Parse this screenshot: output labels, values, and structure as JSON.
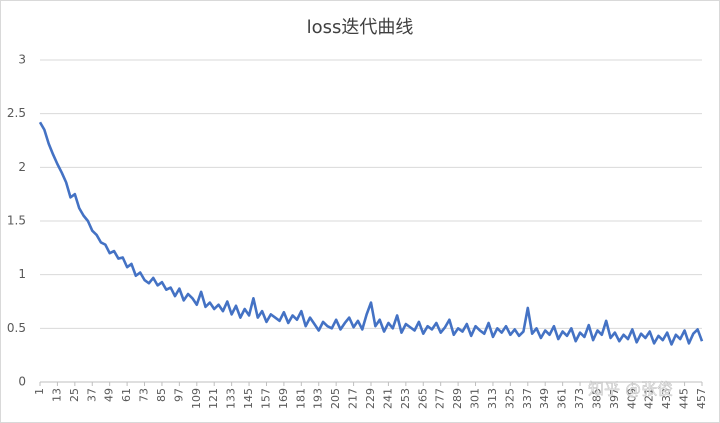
{
  "chart_data": {
    "type": "line",
    "title": "loss迭代曲线",
    "watermark": "知乎 @张俊",
    "x": [
      1,
      4,
      7,
      10,
      13,
      16,
      19,
      22,
      25,
      28,
      31,
      34,
      37,
      40,
      43,
      46,
      49,
      52,
      55,
      58,
      61,
      64,
      67,
      70,
      73,
      76,
      79,
      82,
      85,
      88,
      91,
      94,
      97,
      100,
      103,
      106,
      109,
      112,
      115,
      118,
      121,
      124,
      127,
      130,
      133,
      136,
      139,
      142,
      145,
      148,
      151,
      154,
      157,
      160,
      163,
      166,
      169,
      172,
      175,
      178,
      181,
      184,
      187,
      190,
      193,
      196,
      199,
      202,
      205,
      208,
      211,
      214,
      217,
      220,
      223,
      226,
      229,
      232,
      235,
      238,
      241,
      244,
      247,
      250,
      253,
      256,
      259,
      262,
      265,
      268,
      271,
      274,
      277,
      280,
      283,
      286,
      289,
      292,
      295,
      298,
      301,
      304,
      307,
      310,
      313,
      316,
      319,
      322,
      325,
      328,
      331,
      334,
      337,
      340,
      343,
      346,
      349,
      352,
      355,
      358,
      361,
      364,
      367,
      370,
      373,
      376,
      379,
      382,
      385,
      388,
      391,
      394,
      397,
      400,
      403,
      406,
      409,
      412,
      415,
      418,
      421,
      424,
      427,
      430,
      433,
      436,
      439,
      442,
      445,
      448,
      451,
      454,
      457
    ],
    "values": [
      2.42,
      2.35,
      2.22,
      2.12,
      2.03,
      1.95,
      1.86,
      1.72,
      1.75,
      1.62,
      1.55,
      1.5,
      1.41,
      1.37,
      1.3,
      1.28,
      1.2,
      1.22,
      1.15,
      1.16,
      1.07,
      1.1,
      0.99,
      1.02,
      0.95,
      0.92,
      0.97,
      0.9,
      0.93,
      0.86,
      0.88,
      0.8,
      0.87,
      0.76,
      0.82,
      0.78,
      0.72,
      0.84,
      0.7,
      0.74,
      0.68,
      0.72,
      0.66,
      0.75,
      0.63,
      0.71,
      0.6,
      0.68,
      0.62,
      0.78,
      0.6,
      0.66,
      0.56,
      0.63,
      0.6,
      0.57,
      0.65,
      0.55,
      0.62,
      0.58,
      0.66,
      0.52,
      0.6,
      0.54,
      0.48,
      0.56,
      0.52,
      0.5,
      0.58,
      0.49,
      0.55,
      0.6,
      0.51,
      0.57,
      0.49,
      0.63,
      0.74,
      0.52,
      0.58,
      0.47,
      0.55,
      0.5,
      0.62,
      0.46,
      0.54,
      0.51,
      0.48,
      0.56,
      0.45,
      0.52,
      0.49,
      0.55,
      0.46,
      0.51,
      0.58,
      0.44,
      0.5,
      0.47,
      0.54,
      0.43,
      0.52,
      0.48,
      0.45,
      0.55,
      0.42,
      0.5,
      0.46,
      0.52,
      0.44,
      0.49,
      0.43,
      0.47,
      0.69,
      0.45,
      0.5,
      0.41,
      0.48,
      0.44,
      0.52,
      0.4,
      0.47,
      0.43,
      0.5,
      0.38,
      0.46,
      0.42,
      0.53,
      0.39,
      0.48,
      0.44,
      0.57,
      0.41,
      0.46,
      0.38,
      0.44,
      0.4,
      0.49,
      0.37,
      0.45,
      0.41,
      0.47,
      0.36,
      0.43,
      0.39,
      0.46,
      0.35,
      0.44,
      0.4,
      0.48,
      0.36,
      0.45,
      0.49,
      0.38
    ],
    "color": "#4472c4",
    "xlim": [
      1,
      457
    ],
    "xticks": [
      1,
      13,
      25,
      37,
      49,
      61,
      73,
      85,
      97,
      109,
      121,
      133,
      145,
      157,
      169,
      181,
      193,
      205,
      217,
      229,
      241,
      253,
      265,
      277,
      289,
      301,
      313,
      325,
      337,
      349,
      361,
      373,
      385,
      397,
      409,
      421,
      433,
      445,
      457
    ],
    "ylim": [
      0,
      3
    ],
    "yticks": [
      0,
      0.5,
      1,
      1.5,
      2,
      2.5,
      3
    ],
    "grid": true
  }
}
